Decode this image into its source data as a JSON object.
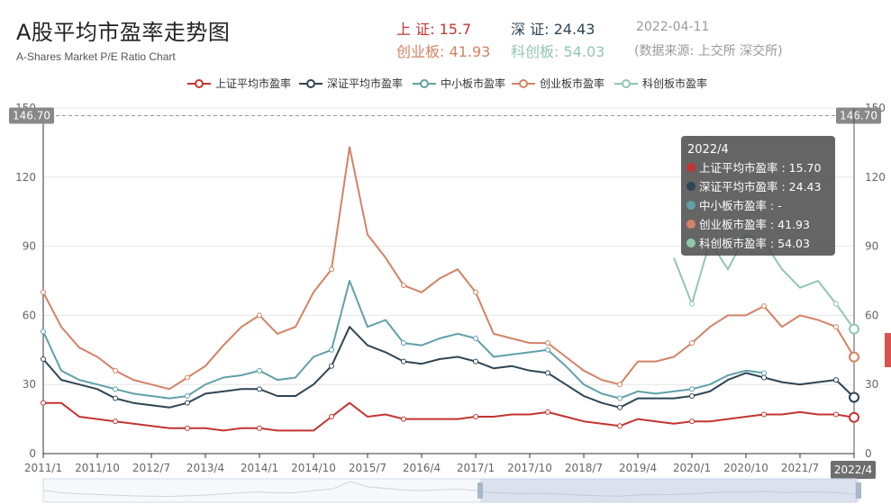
{
  "header": {
    "title": "A股平均市盈率走势图",
    "subtitle": "A-Shares Market P/E Ratio Chart",
    "sh_label": "上 证:",
    "sh_value": "15.7",
    "sz_label": "深 证:",
    "sz_value": "24.43",
    "date": "2022-04-11",
    "cyb_label": "创业板:",
    "cyb_value": "41.93",
    "kcb_label": "科创板:",
    "kcb_value": "54.03",
    "source": "(数据来源: 上交所 深交所)"
  },
  "colors": {
    "sh": "#c23531",
    "sz": "#2f4554",
    "zxb": "#61a0a8",
    "cyb": "#d48265",
    "kcb": "#91c7ae"
  },
  "chart_data": {
    "type": "line",
    "ylim": [
      0,
      150
    ],
    "yticks": [
      "0",
      "30",
      "60",
      "90",
      "120",
      "150"
    ],
    "xtick_labels": [
      "2011/1",
      "2011/10",
      "2012/7",
      "2013/4",
      "2014/1",
      "2014/10",
      "2015/7",
      "2016/4",
      "2017/1",
      "2017/10",
      "2018/7",
      "2019/4",
      "2020/1",
      "2020/10",
      "2021/7",
      "2022/4"
    ],
    "markline_value": "146.70",
    "x": [
      "2011/1",
      "2011/4",
      "2011/7",
      "2011/10",
      "2012/1",
      "2012/4",
      "2012/7",
      "2012/10",
      "2013/1",
      "2013/4",
      "2013/7",
      "2013/10",
      "2014/1",
      "2014/4",
      "2014/7",
      "2014/10",
      "2015/1",
      "2015/4",
      "2015/7",
      "2015/10",
      "2016/1",
      "2016/4",
      "2016/7",
      "2016/10",
      "2017/1",
      "2017/4",
      "2017/7",
      "2017/10",
      "2018/1",
      "2018/4",
      "2018/7",
      "2018/10",
      "2019/1",
      "2019/4",
      "2019/7",
      "2019/10",
      "2020/1",
      "2020/4",
      "2020/7",
      "2020/10",
      "2021/1",
      "2021/4",
      "2021/7",
      "2021/10",
      "2022/1",
      "2022/4"
    ],
    "series": [
      {
        "name": "上证平均市盈率",
        "key": "sh",
        "values": [
          22,
          22,
          16,
          15,
          14,
          13,
          12,
          11,
          11,
          11,
          10,
          11,
          11,
          10,
          10,
          10,
          16,
          22,
          16,
          17,
          15,
          15,
          15,
          15,
          16,
          16,
          17,
          17,
          18,
          16,
          14,
          13,
          12,
          15,
          14,
          13,
          14,
          14,
          15,
          16,
          17,
          17,
          18,
          17,
          17,
          15.7
        ]
      },
      {
        "name": "深证平均市盈率",
        "key": "sz",
        "values": [
          41,
          32,
          30,
          28,
          24,
          22,
          21,
          20,
          22,
          26,
          27,
          28,
          28,
          25,
          25,
          30,
          38,
          55,
          47,
          44,
          40,
          39,
          41,
          42,
          40,
          37,
          38,
          36,
          35,
          30,
          25,
          22,
          20,
          24,
          24,
          24,
          25,
          27,
          32,
          35,
          33,
          31,
          30,
          31,
          32,
          24.43
        ]
      },
      {
        "name": "中小板市盈率",
        "key": "zxb",
        "values": [
          53,
          36,
          32,
          30,
          28,
          26,
          25,
          24,
          25,
          30,
          33,
          34,
          36,
          32,
          33,
          42,
          45,
          75,
          55,
          58,
          48,
          47,
          50,
          52,
          50,
          42,
          43,
          44,
          45,
          38,
          30,
          26,
          24,
          27,
          26,
          27,
          28,
          30,
          34,
          36,
          35,
          null,
          null,
          null,
          null,
          null
        ]
      },
      {
        "name": "创业板市盈率",
        "key": "cyb",
        "values": [
          70,
          55,
          46,
          42,
          36,
          32,
          30,
          28,
          33,
          38,
          47,
          55,
          60,
          52,
          55,
          70,
          80,
          133,
          95,
          85,
          73,
          70,
          76,
          80,
          70,
          52,
          50,
          48,
          48,
          42,
          36,
          32,
          30,
          40,
          40,
          42,
          48,
          55,
          60,
          60,
          64,
          55,
          60,
          58,
          55,
          41.93
        ]
      },
      {
        "name": "科创板市盈率",
        "key": "kcb",
        "values": [
          null,
          null,
          null,
          null,
          null,
          null,
          null,
          null,
          null,
          null,
          null,
          null,
          null,
          null,
          null,
          null,
          null,
          null,
          null,
          null,
          null,
          null,
          null,
          null,
          null,
          null,
          null,
          null,
          null,
          null,
          null,
          null,
          null,
          null,
          null,
          85,
          65,
          92,
          80,
          95,
          92,
          80,
          72,
          75,
          65,
          54.03
        ]
      }
    ]
  },
  "tooltip": {
    "date": "2022/4",
    "rows": [
      {
        "key": "sh",
        "text": "上证平均市盈率 : 15.70"
      },
      {
        "key": "sz",
        "text": "深证平均市盈率 : 24.43"
      },
      {
        "key": "zxb",
        "text": "中小板市盈率 : -"
      },
      {
        "key": "cyb",
        "text": "创业板市盈率 : 41.93"
      },
      {
        "key": "kcb",
        "text": "科创板市盈率 : 54.03"
      }
    ]
  },
  "axis_pointer_label": "2022/4"
}
